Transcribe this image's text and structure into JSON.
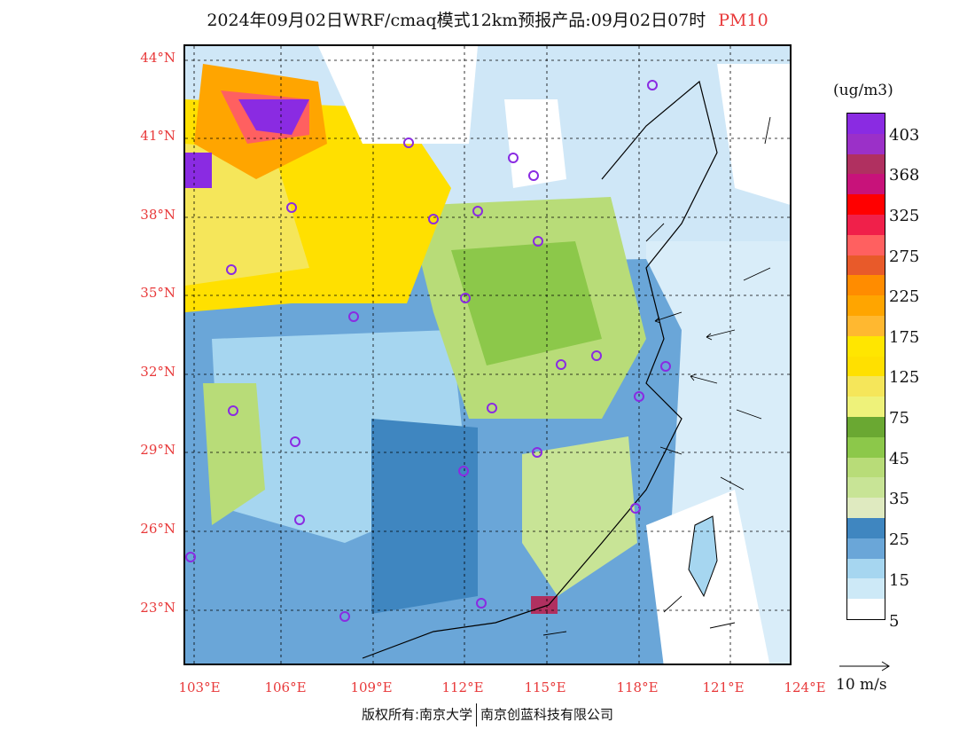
{
  "title": {
    "main": "2024年09月02日WRF/cmaq模式12km预报产品:09月02日07时",
    "product": "PM10"
  },
  "map": {
    "lat_labels": [
      "44°N",
      "41°N",
      "38°N",
      "35°N",
      "32°N",
      "29°N",
      "26°N",
      "23°N"
    ],
    "lon_labels": [
      "103°E",
      "106°E",
      "109°E",
      "112°E",
      "115°E",
      "118°E",
      "121°E",
      "124°E"
    ]
  },
  "colorbar": {
    "unit": "(ug/m3)",
    "colors": [
      "#8a2be2",
      "#9b30c8",
      "#b03060",
      "#c8127a",
      "#ff0000",
      "#f0204a",
      "#ff6060",
      "#e85a2a",
      "#ff8c00",
      "#ffa500",
      "#ffb830",
      "#ffe600",
      "#ffe000",
      "#f5e65a",
      "#eef27a",
      "#6aa832",
      "#8cc84a",
      "#b8dc78",
      "#c8e496",
      "#dfeac0",
      "#3f86c0",
      "#6aa6d8",
      "#a6d6f0",
      "#cde9f7",
      "#ffffff"
    ],
    "labels": [
      "403",
      "368",
      "325",
      "275",
      "225",
      "175",
      "125",
      "75",
      "45",
      "35",
      "25",
      "15",
      "5"
    ]
  },
  "wind_reference": "10 m/s",
  "copyright": {
    "left": "版权所有:南京大学",
    "right": "南京创蓝科技有限公司"
  }
}
